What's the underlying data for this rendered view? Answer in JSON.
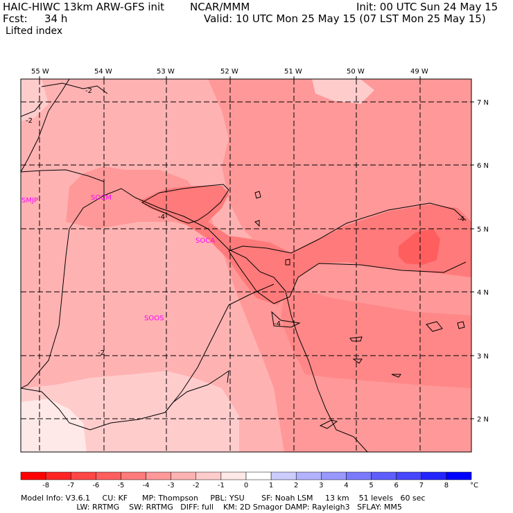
{
  "header": {
    "model": "HAIC-HIWC 13km ARW-GFS init",
    "org": "NCAR/MMM",
    "init": "Init: 00 UTC Sun 24 May 15",
    "fcst_label": "Fcst:",
    "fcst_value": "34 h",
    "valid": "Valid: 10 UTC Mon 25 May 15 (07 LST Mon 25 May 15)",
    "field": "Lifted index"
  },
  "map": {
    "lon_labels": [
      "55 W",
      "54 W",
      "53 W",
      "52 W",
      "51 W",
      "50 W",
      "49 W"
    ],
    "lat_labels": [
      "7 N",
      "6 N",
      "5 N",
      "4 N",
      "3 N",
      "2 N"
    ],
    "stations": [
      "SMJP",
      "SOCM",
      "SOCA",
      "SOOS"
    ],
    "contour_labels": [
      "-2",
      "-2",
      "-4",
      "-4",
      "-4",
      "-2"
    ]
  },
  "colorbar": {
    "ticks": [
      "-8",
      "-7",
      "-6",
      "-5",
      "-4",
      "-3",
      "-2",
      "-1",
      "0",
      "1",
      "2",
      "3",
      "4",
      "5",
      "6",
      "7",
      "8"
    ],
    "unit": "°C",
    "colors": [
      "#ff0000",
      "#ff2424",
      "#ff4646",
      "#ff5e5e",
      "#ff7a7a",
      "#ff9898",
      "#ffb2b2",
      "#ffcccc",
      "#ffe8e8",
      "#ffffff",
      "#ccccff",
      "#b2b2ff",
      "#9898ff",
      "#7a7aff",
      "#5e5eff",
      "#4646ff",
      "#2424ff",
      "#0000ff"
    ]
  },
  "footer": {
    "line1": "Model Info: V3.6.1     CU: KF      MP: Thompson     PBL: YSU       SF: Noah LSM     13 km    51 levels   60 sec",
    "line2": "                       LW: RRTMG    SW: RRTMG   DIFF: full    KM: 2D Smagor DAMP: Rayleigh3   SFLAY: MM5"
  },
  "colors": {
    "shade_light": "#ffcccc",
    "shade_mid": "#ffb2b2",
    "shade_strong": "#ff9898",
    "shade_stronger": "#ff7a7a",
    "shade_strongest": "#ff5e5e",
    "station": "#ff00ff"
  }
}
